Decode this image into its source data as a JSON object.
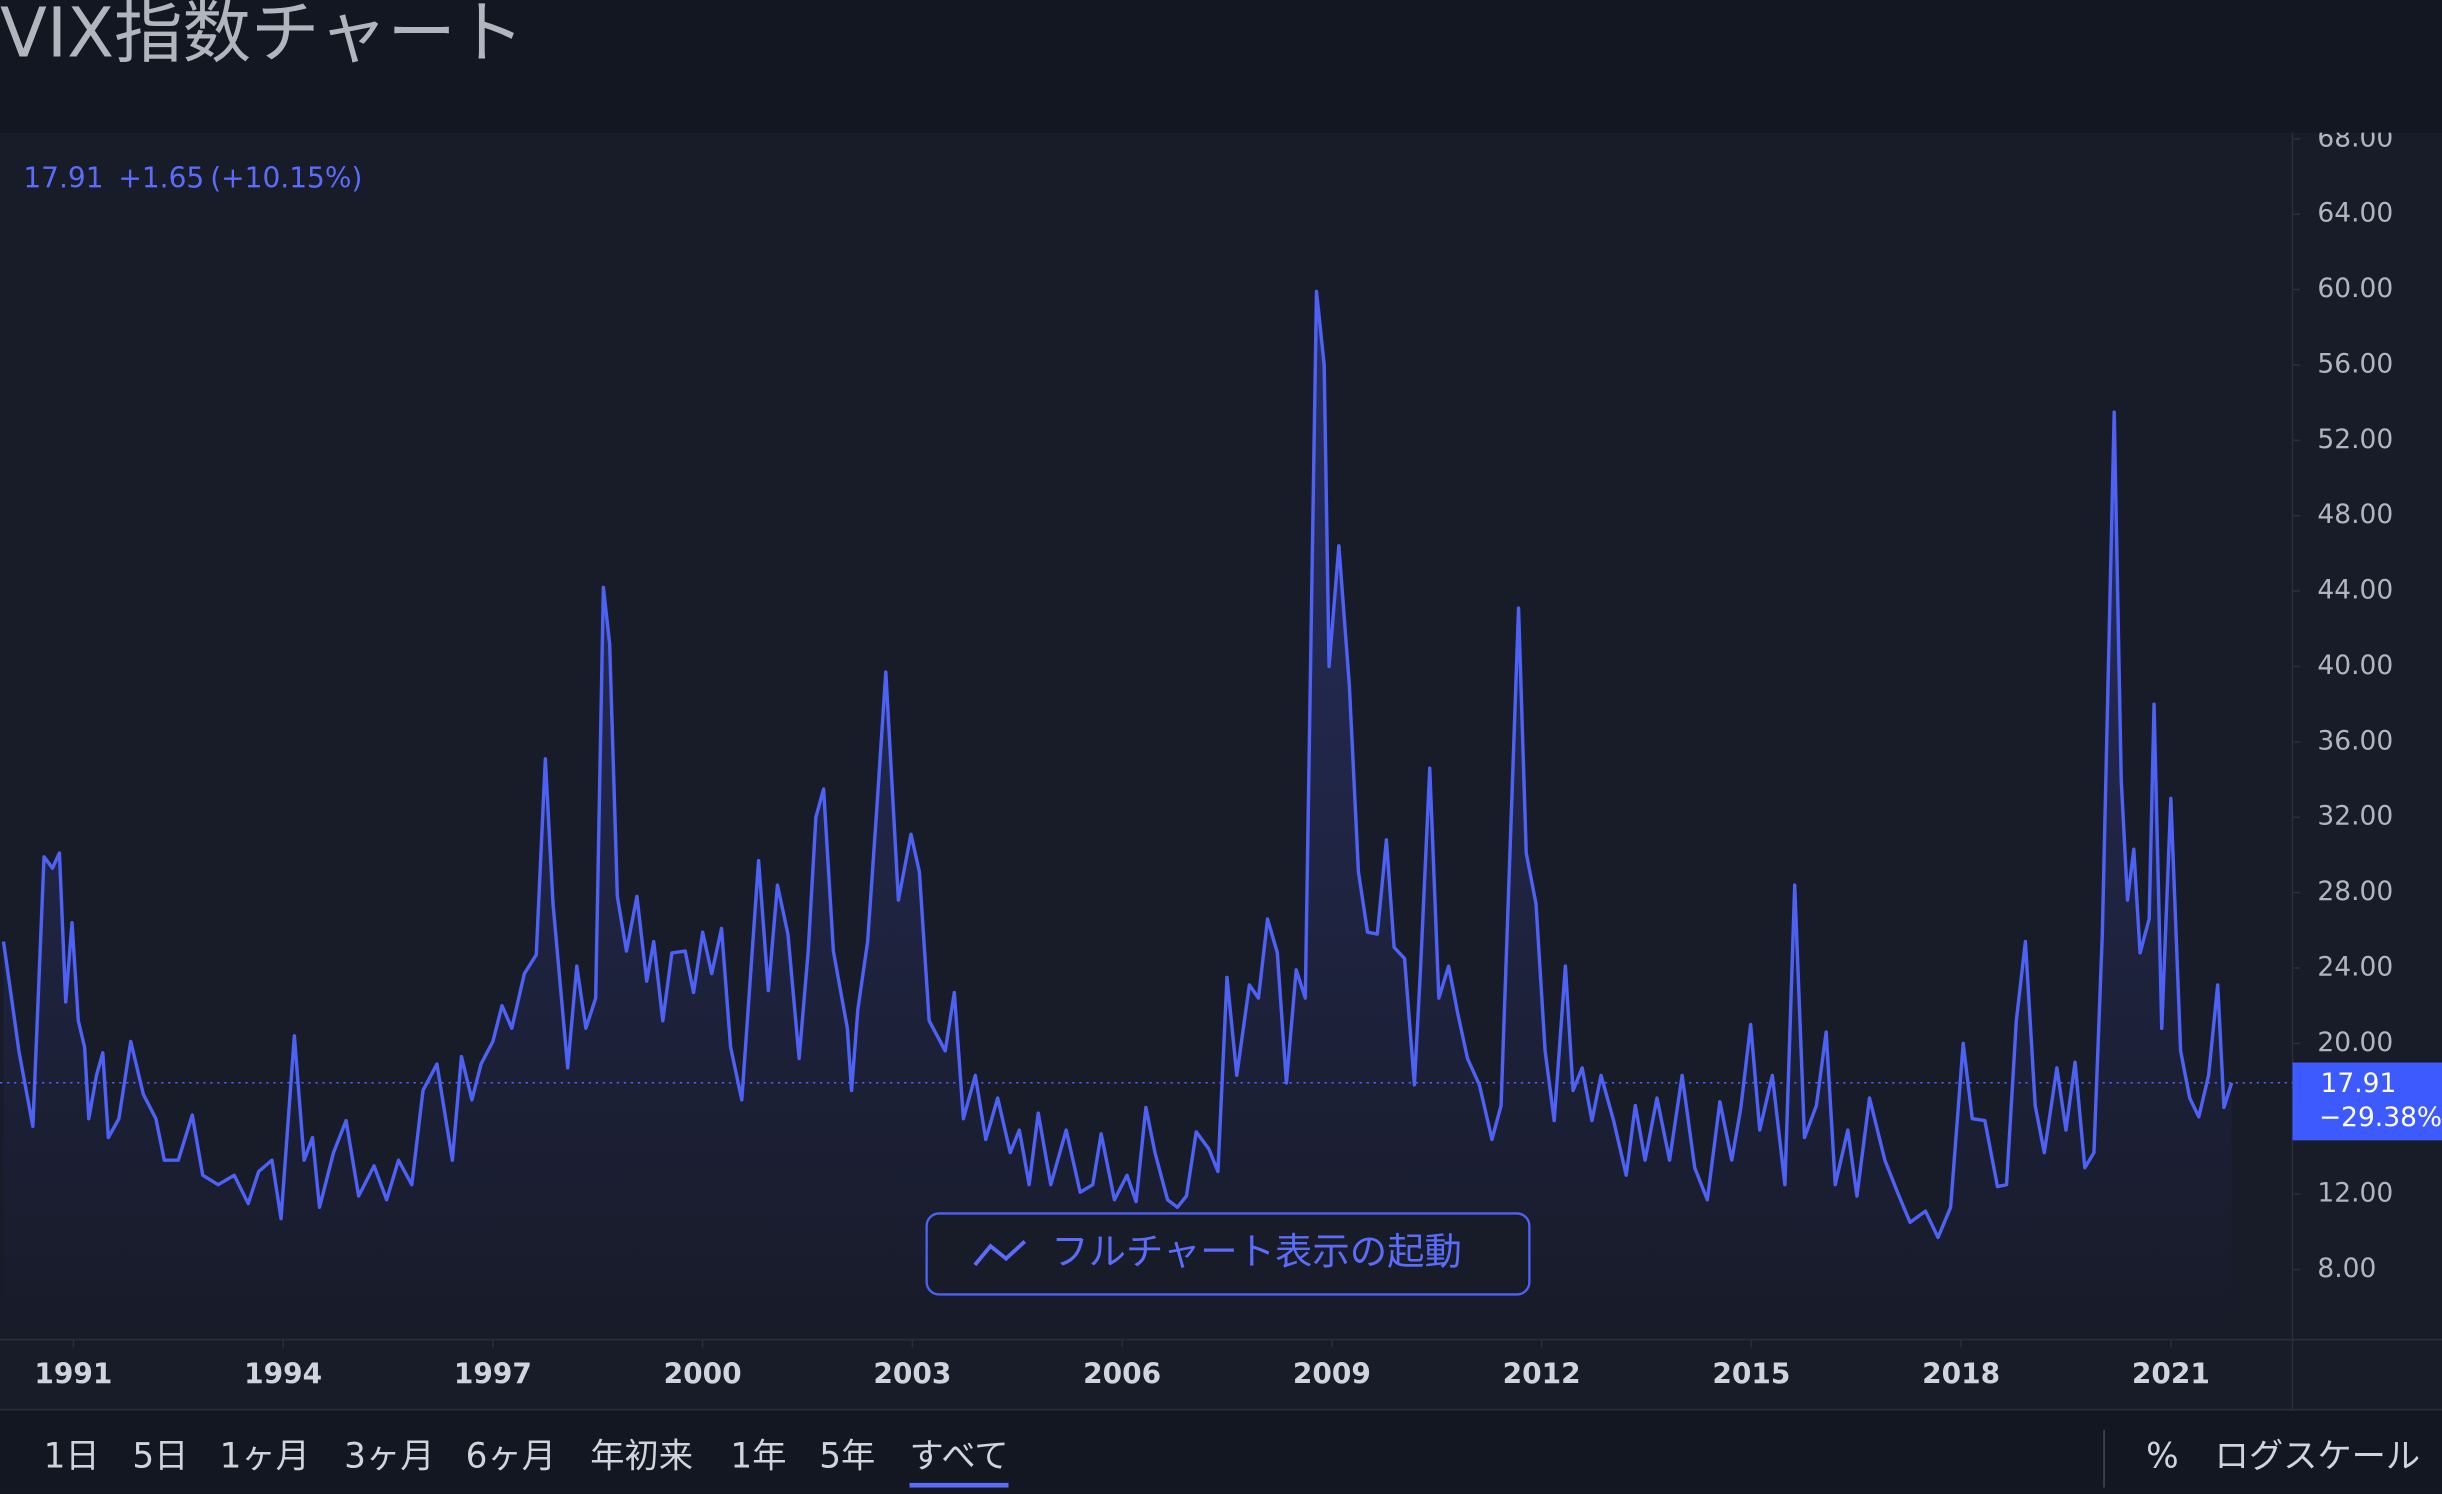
{
  "header": {
    "title": "VIX指数チャート",
    "quote": [
      "17.91",
      "+1.65",
      "(+10.15%)"
    ]
  },
  "chart_data": {
    "type": "line",
    "color": "#4e61f5",
    "x": [
      1990.0,
      1990.13,
      1990.22,
      1990.42,
      1990.58,
      1990.7,
      1990.8,
      1990.89,
      1990.98,
      1991.07,
      1991.16,
      1991.22,
      1991.33,
      1991.42,
      1991.5,
      1991.65,
      1991.82,
      1992.0,
      1992.18,
      1992.3,
      1992.5,
      1992.7,
      1992.85,
      1993.07,
      1993.3,
      1993.5,
      1993.65,
      1993.84,
      1993.97,
      1994.16,
      1994.3,
      1994.42,
      1994.52,
      1994.72,
      1994.9,
      1995.08,
      1995.3,
      1995.48,
      1995.65,
      1995.84,
      1996.0,
      1996.2,
      1996.42,
      1996.55,
      1996.7,
      1996.83,
      1997.0,
      1997.13,
      1997.27,
      1997.45,
      1997.62,
      1997.75,
      1997.86,
      1998.07,
      1998.2,
      1998.33,
      1998.47,
      1998.58,
      1998.67,
      1998.78,
      1998.91,
      1999.06,
      1999.2,
      1999.3,
      1999.43,
      1999.56,
      1999.75,
      1999.87,
      2000.0,
      2000.13,
      2000.27,
      2000.4,
      2000.56,
      2000.8,
      2000.94,
      2001.07,
      2001.22,
      2001.38,
      2001.51,
      2001.62,
      2001.73,
      2001.87,
      2002.07,
      2002.13,
      2002.22,
      2002.36,
      2002.49,
      2002.62,
      2002.8,
      2002.98,
      2003.1,
      2003.24,
      2003.47,
      2003.6,
      2003.73,
      2003.9,
      2004.05,
      2004.22,
      2004.4,
      2004.53,
      2004.67,
      2004.8,
      2004.98,
      2005.2,
      2005.4,
      2005.58,
      2005.7,
      2005.89,
      2006.07,
      2006.2,
      2006.34,
      2006.47,
      2006.65,
      2006.79,
      2006.92,
      2007.06,
      2007.24,
      2007.37,
      2007.5,
      2007.64,
      2007.82,
      2007.95,
      2008.08,
      2008.22,
      2008.35,
      2008.49,
      2008.62,
      2008.78,
      2008.89,
      2008.96,
      2009.1,
      2009.25,
      2009.38,
      2009.51,
      2009.65,
      2009.78,
      2009.89,
      2010.04,
      2010.18,
      2010.27,
      2010.4,
      2010.53,
      2010.67,
      2010.8,
      2010.94,
      2011.11,
      2011.29,
      2011.42,
      2011.67,
      2011.78,
      2011.92,
      2012.05,
      2012.18,
      2012.34,
      2012.45,
      2012.58,
      2012.72,
      2012.85,
      2013.03,
      2013.21,
      2013.34,
      2013.48,
      2013.65,
      2013.83,
      2014.01,
      2014.19,
      2014.37,
      2014.55,
      2014.72,
      2014.85,
      2014.99,
      2015.12,
      2015.3,
      2015.48,
      2015.62,
      2015.76,
      2015.93,
      2016.07,
      2016.2,
      2016.38,
      2016.51,
      2016.69,
      2016.91,
      2017.09,
      2017.27,
      2017.49,
      2017.67,
      2017.85,
      2018.03,
      2018.16,
      2018.34,
      2018.52,
      2018.65,
      2018.79,
      2018.92,
      2019.06,
      2019.19,
      2019.37,
      2019.5,
      2019.63,
      2019.77,
      2019.9,
      2020.02,
      2020.19,
      2020.29,
      2020.38,
      2020.47,
      2020.56,
      2020.69,
      2020.76,
      2020.87,
      2021.0,
      2021.14,
      2021.27,
      2021.4,
      2021.54,
      2021.67,
      2021.76,
      2021.87
    ],
    "values": [
      25.4,
      22,
      19.6,
      15.6,
      29.9,
      29.3,
      30.1,
      22.2,
      26.4,
      21.2,
      19.8,
      16,
      18.3,
      19.5,
      15,
      16,
      20.1,
      17.3,
      16,
      13.8,
      13.8,
      16.2,
      13,
      12.5,
      13,
      11.5,
      13.2,
      13.8,
      10.7,
      20.4,
      13.8,
      15,
      11.3,
      14.2,
      15.9,
      11.9,
      13.5,
      11.7,
      13.8,
      12.5,
      17.5,
      18.9,
      13.8,
      19.3,
      17,
      18.9,
      20.1,
      22,
      20.8,
      23.7,
      24.7,
      35.1,
      27.4,
      18.7,
      24.1,
      20.8,
      22.4,
      44.2,
      41.2,
      27.8,
      24.9,
      27.8,
      23.3,
      25.4,
      21.2,
      24.8,
      24.9,
      22.7,
      25.9,
      23.7,
      26.1,
      19.8,
      17,
      29.7,
      22.8,
      28.4,
      25.8,
      19.2,
      24.9,
      32,
      33.5,
      24.9,
      20.8,
      17.5,
      21.8,
      25.4,
      32.4,
      39.7,
      27.6,
      31.1,
      29.1,
      21.2,
      19.6,
      22.7,
      16,
      18.3,
      14.9,
      17.1,
      14.2,
      15.4,
      12.5,
      16.3,
      12.5,
      15.4,
      12.1,
      12.5,
      15.2,
      11.7,
      13,
      11.6,
      16.6,
      14.2,
      11.7,
      11.3,
      11.9,
      15.3,
      14.4,
      13.2,
      23.5,
      18.3,
      23.1,
      22.4,
      26.6,
      24.8,
      17.9,
      23.9,
      22.4,
      59.9,
      56,
      40,
      46.4,
      39,
      29.1,
      25.9,
      25.8,
      30.8,
      25.1,
      24.5,
      17.8,
      24.1,
      34.6,
      22.4,
      24.1,
      21.6,
      19.2,
      17.8,
      14.9,
      16.7,
      43.1,
      30.1,
      27.4,
      19.6,
      15.9,
      24.1,
      17.5,
      18.7,
      15.9,
      18.3,
      15.9,
      13,
      16.7,
      13.8,
      17.1,
      13.8,
      18.3,
      13.4,
      11.7,
      16.9,
      13.8,
      16.6,
      21,
      15.4,
      18.3,
      12.5,
      28.4,
      15,
      16.7,
      20.6,
      12.5,
      15.4,
      11.9,
      17.1,
      13.8,
      12.1,
      10.5,
      11.1,
      9.7,
      11.3,
      20,
      16,
      15.9,
      12.4,
      12.5,
      21.2,
      25.4,
      16.7,
      14.2,
      18.7,
      15.4,
      19,
      13.4,
      14.2,
      25.8,
      53.5,
      34,
      27.6,
      30.3,
      24.8,
      26.6,
      38,
      20.8,
      33,
      19.6,
      17.1,
      16.1,
      18.3,
      23.1,
      16.6,
      17.91
    ],
    "xlim": [
      1989.95,
      2022.74
    ],
    "xticks": [
      1991,
      1994,
      1997,
      2000,
      2003,
      2006,
      2009,
      2012,
      2015,
      2018,
      2021
    ],
    "ylim": [
      4.28,
      68.33
    ],
    "yticks": [
      {
        "value": 8,
        "label": "8.00"
      },
      {
        "value": 12,
        "label": "12.00"
      },
      {
        "value": 20,
        "label": "20.00"
      },
      {
        "value": 24,
        "label": "24.00"
      },
      {
        "value": 28,
        "label": "28.00"
      },
      {
        "value": 32,
        "label": "32.00"
      },
      {
        "value": 36,
        "label": "36.00"
      },
      {
        "value": 40,
        "label": "40.00"
      },
      {
        "value": 44,
        "label": "44.00"
      },
      {
        "value": 48,
        "label": "48.00"
      },
      {
        "value": 52,
        "label": "52.00"
      },
      {
        "value": 56,
        "label": "56.00"
      },
      {
        "value": 60,
        "label": "60.00"
      },
      {
        "value": 64,
        "label": "64.00"
      },
      {
        "value": 68,
        "label": "68.00"
      }
    ],
    "price_label": {
      "value": 17.91,
      "label": "17.91"
    },
    "period_change": "−29.38%",
    "log_scale": false,
    "grid": false
  },
  "button": "フルチャート表示の起動",
  "toolbar": {
    "ranges": [
      "1日",
      "5日",
      "1ヶ月",
      "3ヶ月",
      "6ヶ月",
      "年初来",
      "1年",
      "5年",
      "すべて"
    ],
    "selected": 8,
    "scale_options": [
      "%",
      "ログスケール"
    ]
  }
}
